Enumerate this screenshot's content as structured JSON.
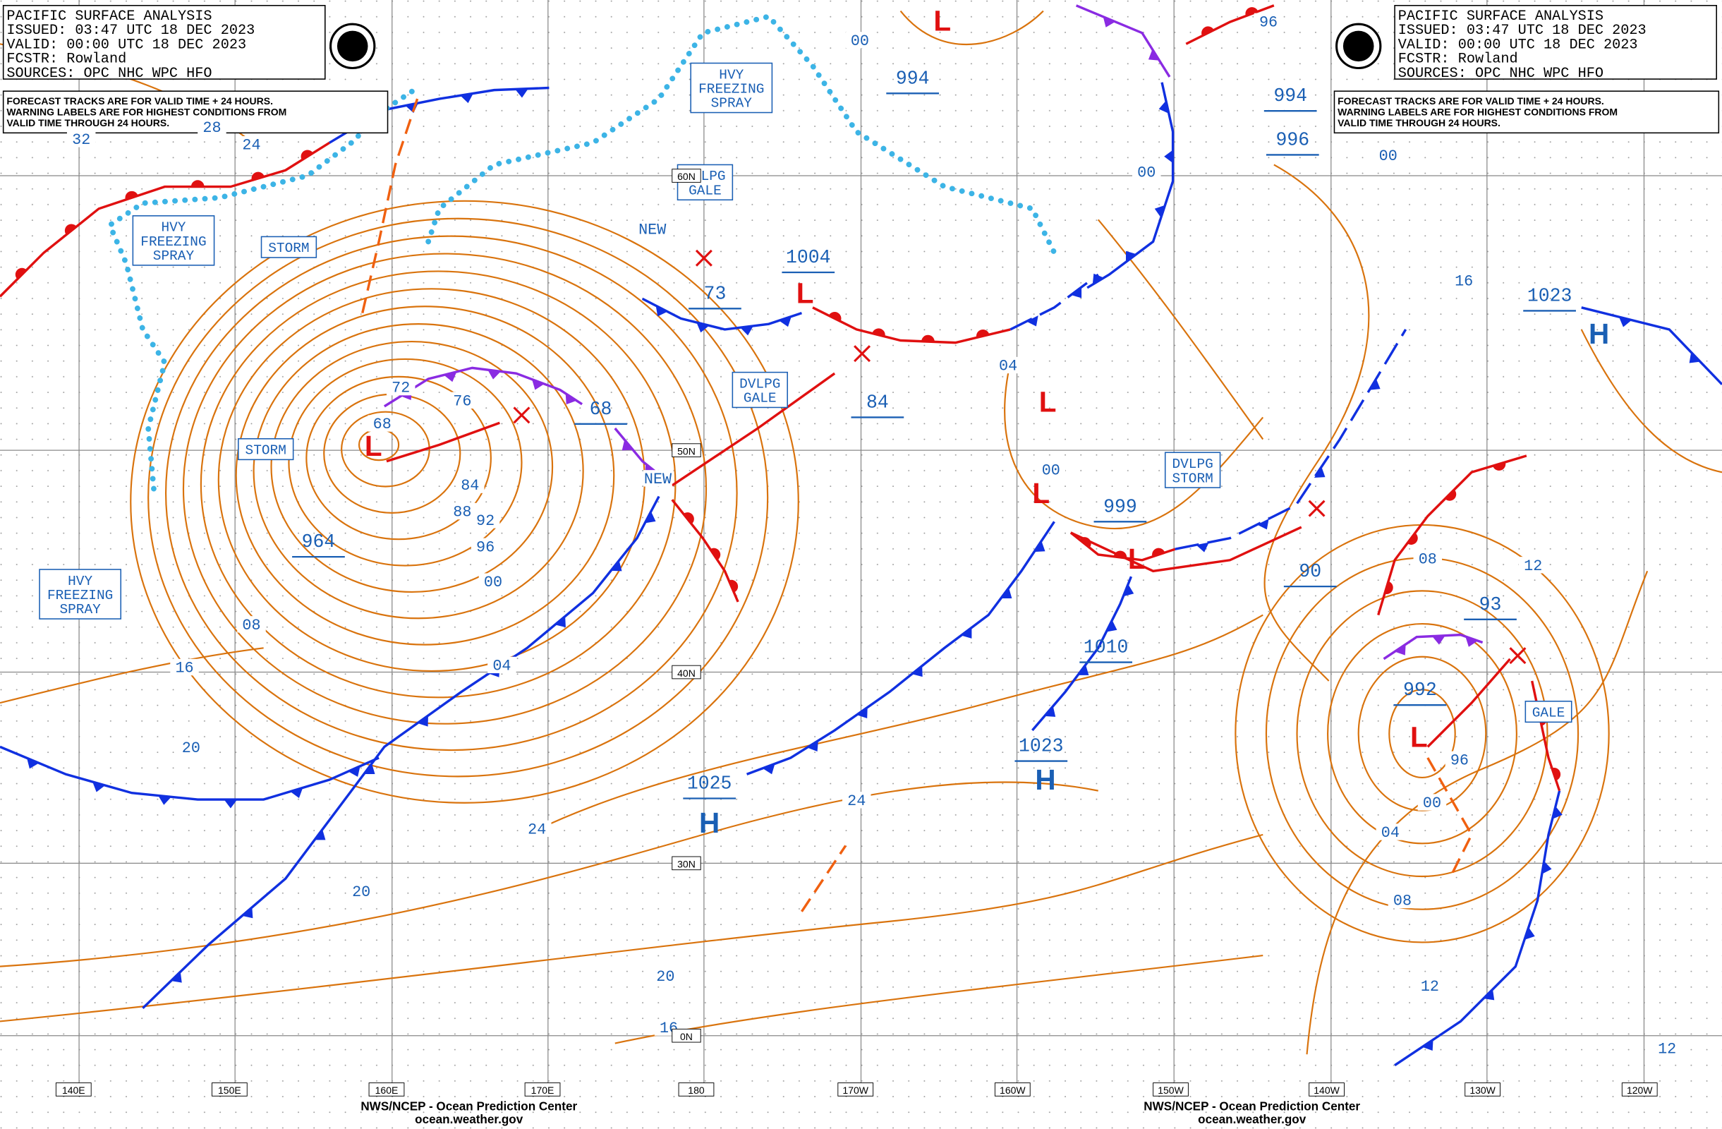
{
  "header_left": {
    "title": "PACIFIC SURFACE ANALYSIS",
    "issued": "ISSUED: 03:47 UTC 18 DEC 2023",
    "valid": "VALID:  00:00 UTC 18 DEC 2023",
    "forecaster": "FCSTR:  Rowland",
    "sources": "SOURCES: OPC NHC WPC HFO",
    "note": [
      "FORECAST TRACKS ARE FOR VALID TIME + 24 HOURS.",
      "WARNING LABELS ARE FOR HIGHEST CONDITIONS FROM",
      "VALID TIME THROUGH 24 HOURS."
    ]
  },
  "header_right": {
    "title": "PACIFIC SURFACE ANALYSIS",
    "issued": "ISSUED: 03:47 UTC 18 DEC 2023",
    "valid": "VALID:  00:00 UTC 18 DEC 2023",
    "forecaster": "FCSTR:  Rowland",
    "sources": "SOURCES: OPC NHC WPC HFO",
    "note": [
      "FORECAST TRACKS ARE FOR VALID TIME + 24 HOURS.",
      "WARNING LABELS ARE FOR HIGHEST CONDITIONS FROM",
      "VALID TIME THROUGH 24 HOURS."
    ]
  },
  "warning_boxes": [
    {
      "lines": [
        "HVY",
        "FREEZING",
        "SPRAY"
      ]
    },
    {
      "lines": [
        "HVY",
        "FREEZING",
        "SPRAY"
      ]
    },
    {
      "lines": [
        "HVY",
        "FREEZING",
        "SPRAY"
      ]
    },
    {
      "lines": [
        "DVLPG",
        "GALE"
      ]
    },
    {
      "lines": [
        "DVLPG",
        "GALE"
      ]
    },
    {
      "lines": [
        "DVLPG",
        "STORM"
      ]
    },
    {
      "lines": [
        "STORM"
      ]
    },
    {
      "lines": [
        "STORM"
      ]
    },
    {
      "lines": [
        "GALE"
      ]
    }
  ],
  "pressure_labels": [
    "994",
    "1004",
    "73",
    "68",
    "84",
    "964",
    "999",
    "90",
    "1010",
    "1023",
    "1025",
    "1023",
    "994",
    "996",
    "93",
    "992"
  ],
  "centers": [
    "L",
    "L",
    "L",
    "L",
    "L",
    "L",
    "L",
    "H",
    "H",
    "H"
  ],
  "isobar_labels": [
    "32",
    "28",
    "24",
    "72",
    "76",
    "68",
    "84",
    "88",
    "92",
    "96",
    "00",
    "08",
    "16",
    "20",
    "04",
    "24",
    "20",
    "20",
    "16",
    "24",
    "00",
    "NEW",
    "NEW",
    "04",
    "00",
    "96",
    "00",
    "00",
    "16",
    "08",
    "12",
    "96",
    "00",
    "04",
    "08",
    "12",
    "12"
  ],
  "lon_labels": [
    "140E",
    "150E",
    "160E",
    "170E",
    "180",
    "170W",
    "160W",
    "150W",
    "140W",
    "130W",
    "120W"
  ],
  "lat_labels": [
    "60N",
    "50N",
    "40N",
    "30N",
    "0N"
  ],
  "footer": {
    "agency": "NWS/NCEP - Ocean Prediction Center",
    "site": "ocean.weather.gov"
  }
}
